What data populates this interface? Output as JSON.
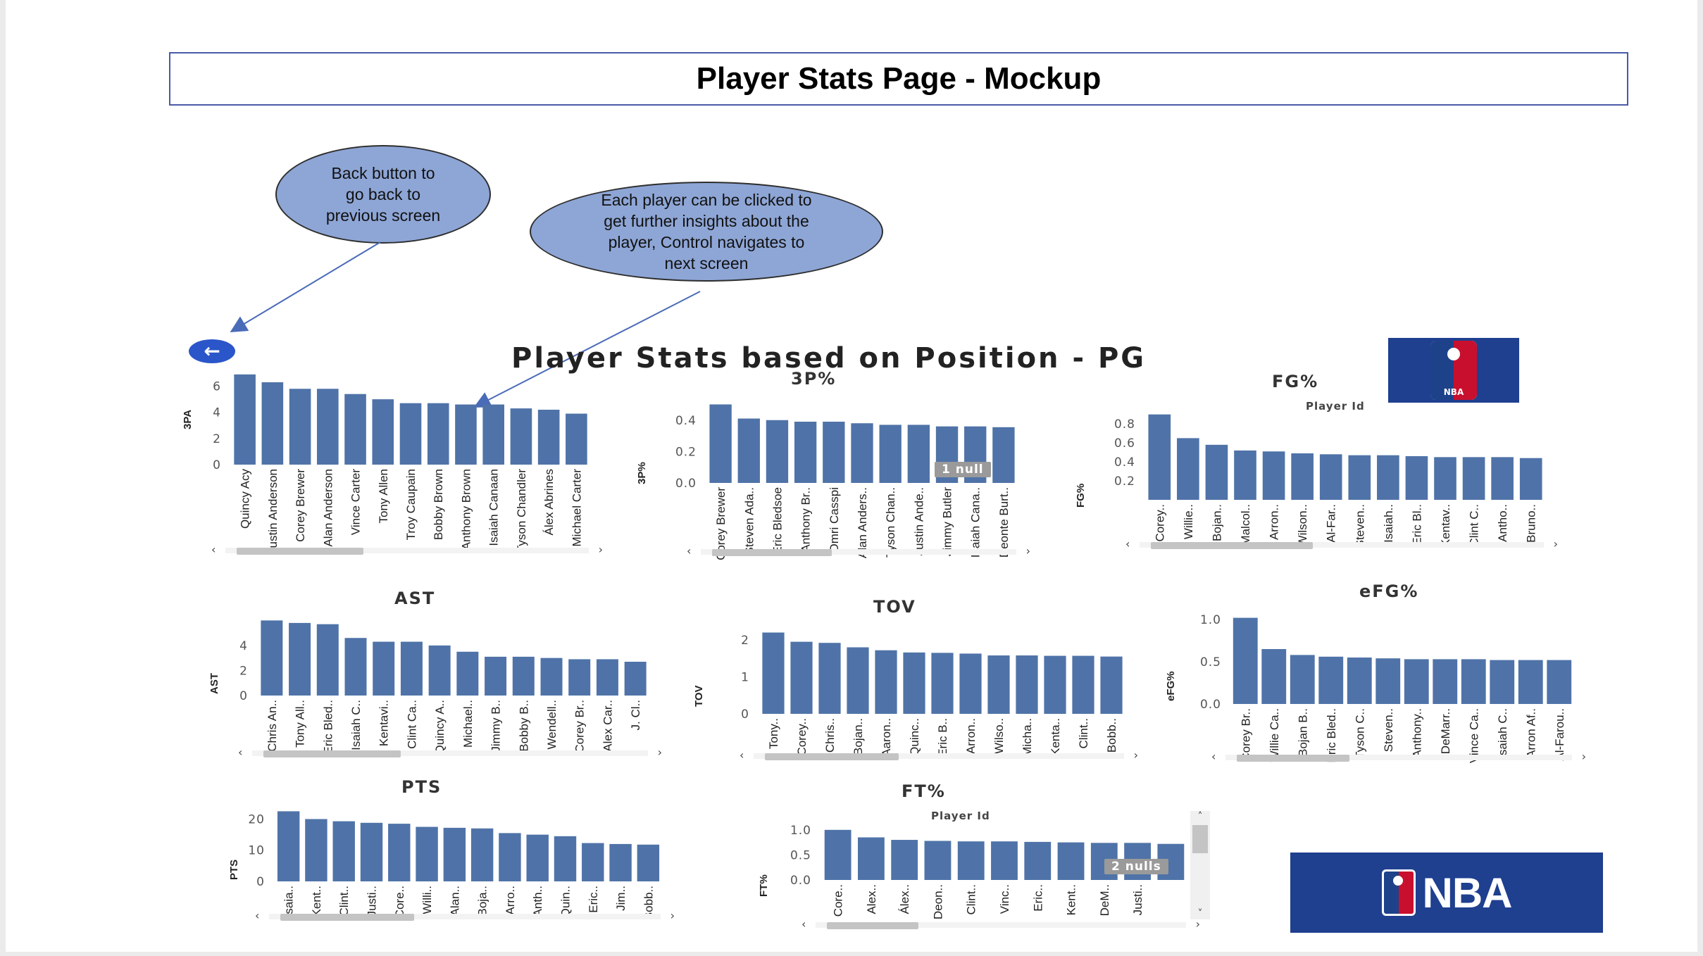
{
  "page": {
    "title": "Player Stats Page - Mockup",
    "dashboard_title": "Player Stats based on Position - PG"
  },
  "callouts": {
    "back": "Back button to go back to previous screen",
    "back_lines": [
      "Back button to",
      "go back to",
      "previous screen"
    ],
    "players": "Each player can be clicked to get further insights about the player, Control navigates to next screen",
    "players_lines": [
      "Each player can be clicked to",
      "get further insights about the",
      "player, Control navigates to",
      "next screen"
    ]
  },
  "back_button": {
    "icon": "arrow-left-icon"
  },
  "logos": {
    "small": "nba-logo",
    "large": "nba-logo",
    "wordmark": "NBA",
    "badge_text": "NBA"
  },
  "colors": {
    "bar": "#4f73a8",
    "callout_fill": "#8ea6d6",
    "logo_bg": "#1f3f8f",
    "back_button": "#2b56c9"
  },
  "chart_data": [
    {
      "id": "3pa",
      "type": "bar",
      "title": "",
      "subtitle": "",
      "ylabel": "3PA",
      "ylim": [
        0,
        7
      ],
      "yticks": [
        0,
        2,
        4,
        6
      ],
      "categories": [
        "Quincy Acy",
        "Justin Anderson",
        "Corey Brewer",
        "Alan Anderson",
        "Vince Carter",
        "Tony Allen",
        "Troy Caupain",
        "Bobby Brown",
        "Anthony Brown",
        "Isaiah Canaan",
        "Tyson Chandler",
        "Álex Abrines",
        "Michael Carter"
      ],
      "values": [
        6.9,
        6.3,
        5.8,
        5.8,
        5.4,
        5.0,
        4.7,
        4.7,
        4.6,
        4.6,
        4.3,
        4.2,
        3.9
      ],
      "null_badge": ""
    },
    {
      "id": "3p",
      "type": "bar",
      "title": "3P%",
      "subtitle": "",
      "ylabel": "3P%",
      "ylim": [
        0,
        0.52
      ],
      "yticks": [
        0.0,
        0.2,
        0.4
      ],
      "tick_decimals": 1,
      "categories": [
        "Corey Brewer",
        "Steven Ada..",
        "Eric Bledsoe",
        "Anthony Br..",
        "Omri Casspi",
        "Alan Anders..",
        "Tyson Chan..",
        "Justin Ande..",
        "Jimmy Butler",
        "Isaiah Cana..",
        "Deonte Burt.."
      ],
      "values": [
        0.5,
        0.41,
        0.4,
        0.39,
        0.39,
        0.38,
        0.37,
        0.37,
        0.36,
        0.36,
        0.355
      ],
      "null_badge": "1 null"
    },
    {
      "id": "fg",
      "type": "bar",
      "title": "FG%",
      "subtitle": "Player Id",
      "ylabel": "FG%",
      "ylim": [
        0,
        0.92
      ],
      "yticks": [
        0.2,
        0.4,
        0.6,
        0.8
      ],
      "tick_decimals": 1,
      "categories": [
        "Corey..",
        "Willie..",
        "Bojan..",
        "Malcol..",
        "Arron..",
        "Wilson..",
        "Al-Far..",
        "Steven..",
        "Isaiah..",
        "Eric Bl..",
        "Kentav..",
        "Clint C..",
        "Antho..",
        "Bruno.."
      ],
      "values": [
        0.9,
        0.65,
        0.58,
        0.52,
        0.51,
        0.49,
        0.48,
        0.47,
        0.47,
        0.46,
        0.45,
        0.45,
        0.45,
        0.44
      ],
      "null_badge": ""
    },
    {
      "id": "ast",
      "type": "bar",
      "title": "AST",
      "subtitle": "",
      "ylabel": "AST",
      "ylim": [
        0,
        6.3
      ],
      "yticks": [
        0,
        2,
        4
      ],
      "categories": [
        "Chris An..",
        "Tony All..",
        "Eric Bled..",
        "Isaiah C..",
        "Kentavi..",
        "Clint Ca..",
        "Quincy A..",
        "Michael..",
        "Jimmy B..",
        "Bobby B..",
        "Wendell..",
        "Corey Br..",
        "Alex Car..",
        "J. Cl.."
      ],
      "values": [
        6.0,
        5.8,
        5.7,
        4.6,
        4.3,
        4.3,
        4.0,
        3.5,
        3.1,
        3.1,
        3.0,
        2.9,
        2.9,
        2.7
      ],
      "null_badge": ""
    },
    {
      "id": "tov",
      "type": "bar",
      "title": "TOV",
      "subtitle": "",
      "ylabel": "TOV",
      "ylim": [
        0,
        2.4
      ],
      "yticks": [
        0,
        1,
        2
      ],
      "categories": [
        "Tony..",
        "Corey..",
        "Chris..",
        "Bojan..",
        "Aaron..",
        "Quinc..",
        "Eric B..",
        "Arron..",
        "Wilso..",
        "Micha..",
        "Kenta..",
        "Clint..",
        "Bobb.."
      ],
      "values": [
        2.2,
        1.95,
        1.92,
        1.8,
        1.72,
        1.66,
        1.65,
        1.63,
        1.58,
        1.58,
        1.57,
        1.57,
        1.55
      ],
      "null_badge": ""
    },
    {
      "id": "efg",
      "type": "bar",
      "title": "eFG%",
      "subtitle": "",
      "ylabel": "eFG%",
      "ylim": [
        0,
        1.05
      ],
      "yticks": [
        0.0,
        0.5,
        1.0
      ],
      "tick_decimals": 1,
      "categories": [
        "Corey Br..",
        "Willie Ca..",
        "Bojan B..",
        "Eric Bled..",
        "Tyson C..",
        "Steven..",
        "Anthony..",
        "DeMarr..",
        "Vince Ca..",
        "Isaiah C..",
        "Arron Af..",
        "Al-Farou.."
      ],
      "values": [
        1.02,
        0.65,
        0.58,
        0.56,
        0.55,
        0.54,
        0.53,
        0.53,
        0.53,
        0.52,
        0.52,
        0.52
      ],
      "null_badge": ""
    },
    {
      "id": "pts",
      "type": "bar",
      "title": "PTS",
      "subtitle": "",
      "ylabel": "PTS",
      "ylim": [
        0,
        23.5
      ],
      "yticks": [
        0,
        10,
        20
      ],
      "categories": [
        "Isaia..",
        "Kent..",
        "Clint..",
        "Justi..",
        "Core..",
        "Willi..",
        "Alan..",
        "Boja..",
        "Arro..",
        "Anth..",
        "Quin..",
        "Eric..",
        "Jim..",
        "Bobb.."
      ],
      "values": [
        22.5,
        20.0,
        19.3,
        18.8,
        18.5,
        17.5,
        17.2,
        17.0,
        15.5,
        15.0,
        14.5,
        12.3,
        12.0,
        11.8
      ],
      "null_badge": ""
    },
    {
      "id": "ft",
      "type": "bar",
      "title": "FT%",
      "subtitle": "Player Id",
      "ylabel": "FT%",
      "ylim": [
        0,
        1.18
      ],
      "yticks": [
        0.0,
        0.5,
        1.0
      ],
      "tick_decimals": 1,
      "categories": [
        "Core..",
        "Alex..",
        "Álex..",
        "Deon..",
        "Clint..",
        "Vinc..",
        "Eric..",
        "Kent..",
        "DeM..",
        "Justi..",
        ""
      ],
      "values": [
        1.0,
        0.85,
        0.8,
        0.78,
        0.77,
        0.77,
        0.76,
        0.75,
        0.74,
        0.74,
        0.72
      ],
      "null_badge": "2 nulls"
    }
  ]
}
